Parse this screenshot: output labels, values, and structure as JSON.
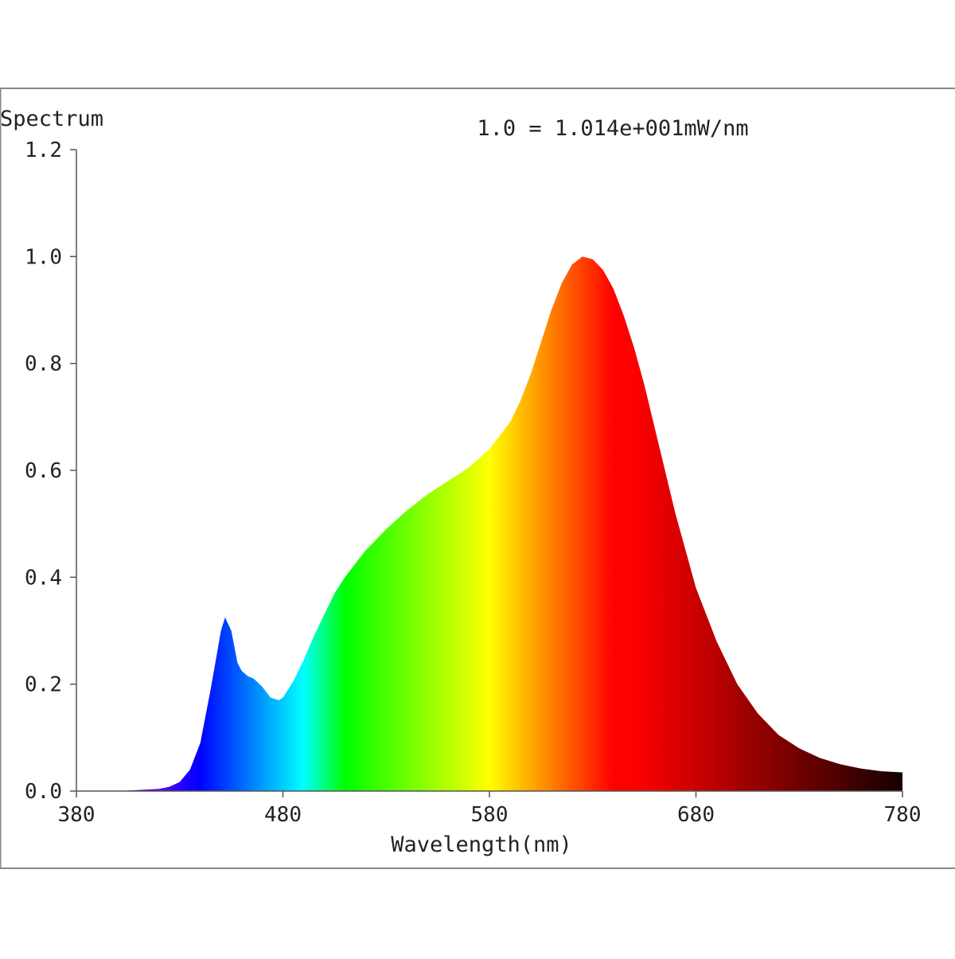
{
  "chart_data": {
    "type": "area",
    "title": "",
    "ylabel": "Spectrum",
    "xlabel": "Wavelength(nm)",
    "annotation": "1.0 = 1.014e+001mW/nm",
    "xlim": [
      380,
      780
    ],
    "ylim": [
      0,
      1.2
    ],
    "x_ticks": [
      380,
      480,
      580,
      680,
      780
    ],
    "x_tick_labels": [
      "380",
      "480",
      "580",
      "680",
      "780"
    ],
    "y_ticks": [
      0,
      0.2,
      0.4,
      0.6,
      0.8,
      1.0,
      1.2
    ],
    "y_tick_labels": [
      "0.0",
      "0.2",
      "0.4",
      "0.6",
      "0.8",
      "1.0",
      "1.2"
    ],
    "grid": false,
    "fill": "wavelength spectral colors",
    "series": [
      {
        "x": [
          380,
          390,
          400,
          410,
          420,
          425,
          430,
          435,
          440,
          445,
          450,
          452,
          455,
          458,
          460,
          463,
          466,
          470,
          474,
          478,
          480,
          485,
          490,
          495,
          500,
          505,
          510,
          515,
          520,
          530,
          540,
          550,
          560,
          570,
          580,
          590,
          595,
          600,
          605,
          610,
          615,
          620,
          625,
          630,
          635,
          640,
          645,
          650,
          655,
          660,
          665,
          670,
          675,
          680,
          690,
          700,
          710,
          720,
          730,
          740,
          750,
          760,
          770,
          780
        ],
        "y": [
          0.0,
          0.0,
          0.0,
          0.002,
          0.004,
          0.008,
          0.017,
          0.04,
          0.09,
          0.19,
          0.3,
          0.325,
          0.3,
          0.24,
          0.225,
          0.215,
          0.21,
          0.195,
          0.175,
          0.17,
          0.175,
          0.205,
          0.245,
          0.29,
          0.33,
          0.37,
          0.4,
          0.425,
          0.45,
          0.49,
          0.525,
          0.555,
          0.58,
          0.605,
          0.64,
          0.69,
          0.73,
          0.78,
          0.84,
          0.9,
          0.95,
          0.985,
          1.0,
          0.995,
          0.975,
          0.94,
          0.89,
          0.83,
          0.76,
          0.68,
          0.6,
          0.52,
          0.45,
          0.38,
          0.28,
          0.2,
          0.145,
          0.105,
          0.08,
          0.062,
          0.05,
          0.042,
          0.037,
          0.035
        ]
      }
    ]
  }
}
